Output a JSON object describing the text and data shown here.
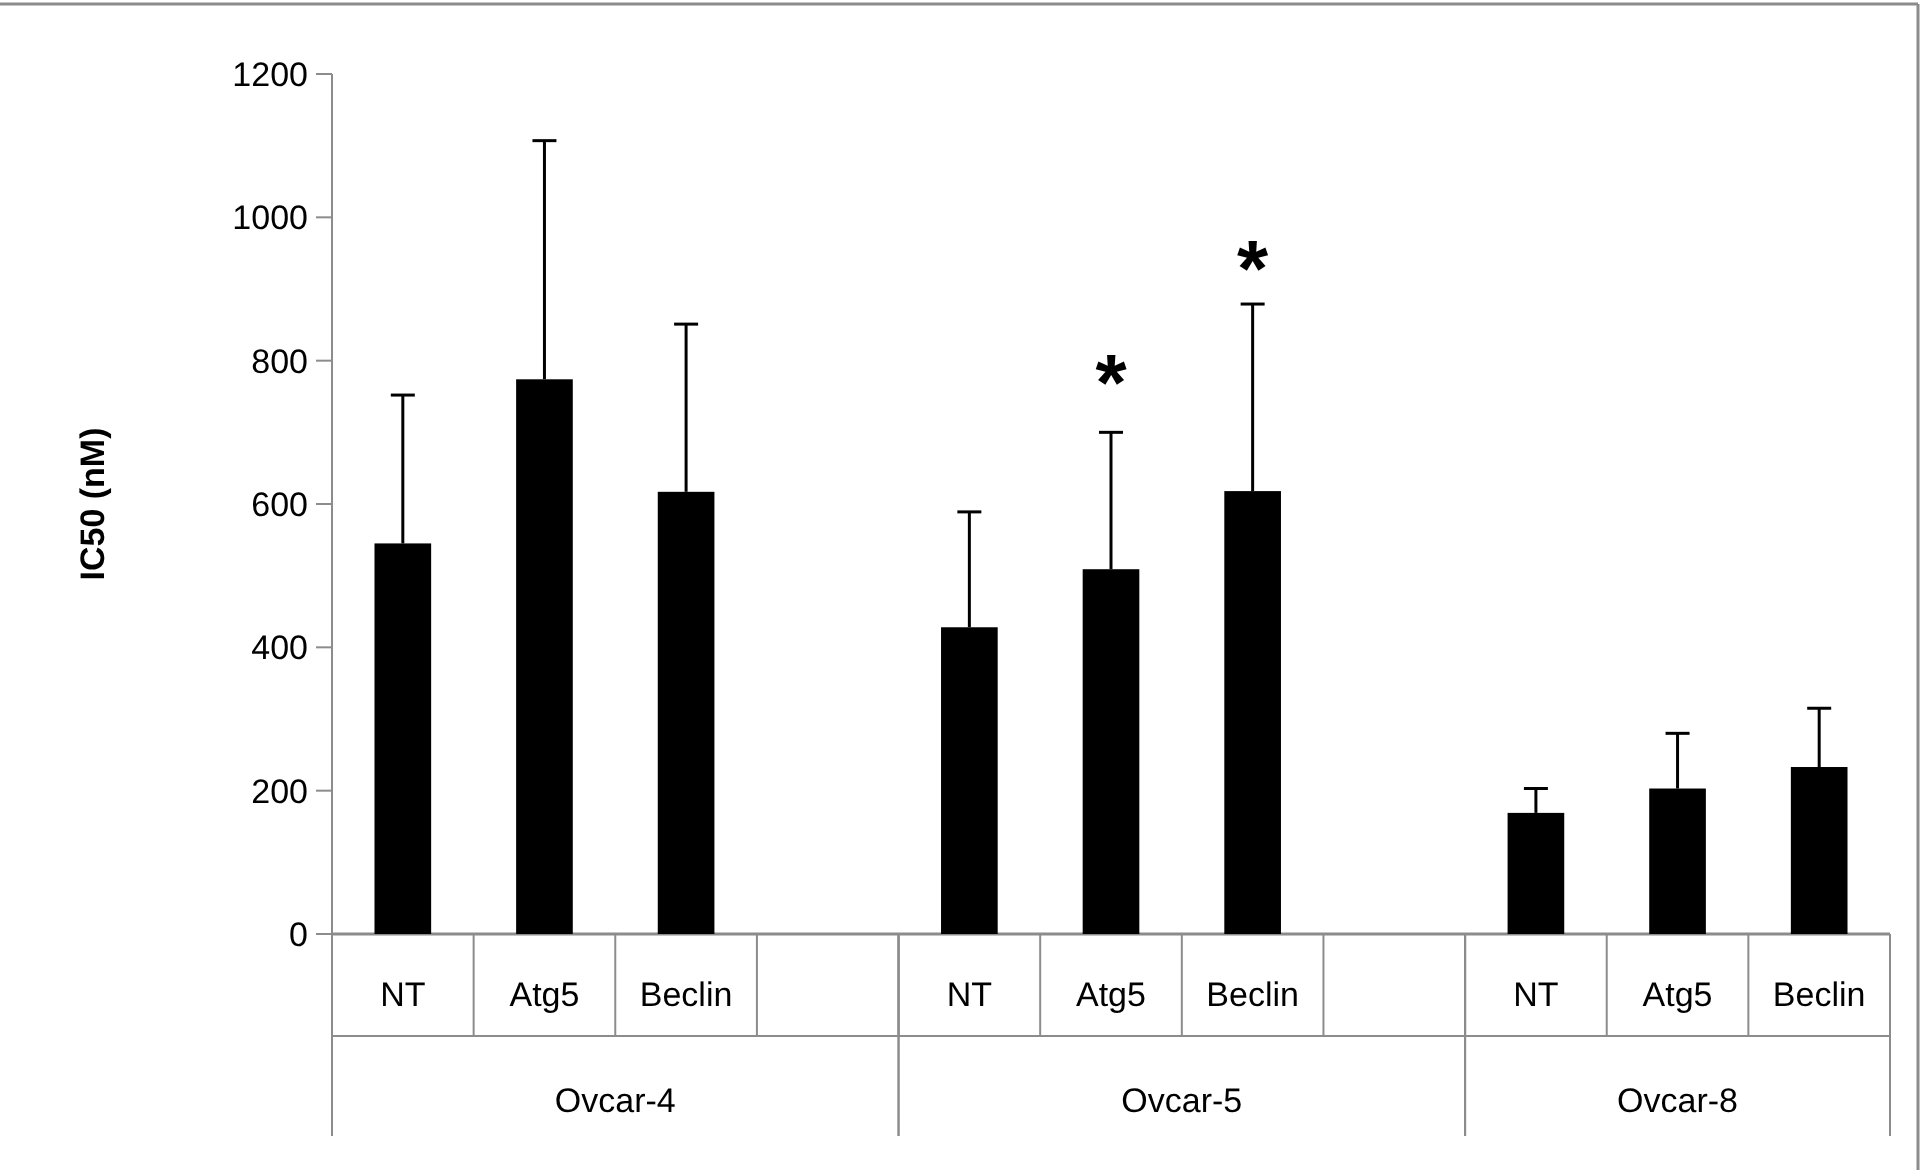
{
  "chart_data": {
    "type": "bar",
    "ylabel": "IC50 (nM)",
    "categories": [
      "NT",
      "Atg5",
      "Beclin",
      null,
      "NT",
      "Atg5",
      "Beclin",
      null,
      "NT",
      "Atg5",
      "Beclin"
    ],
    "values": [
      545,
      774,
      617,
      null,
      428,
      509,
      618,
      null,
      169,
      203,
      233
    ],
    "errors": [
      [
        545,
        752
      ],
      [
        774,
        1107
      ],
      [
        617,
        851
      ],
      null,
      [
        428,
        589
      ],
      [
        509,
        700
      ],
      [
        618,
        879
      ],
      null,
      [
        169,
        203
      ],
      [
        203,
        280
      ],
      [
        233,
        315
      ]
    ],
    "color": "#000000",
    "ylim": [
      0,
      1200
    ],
    "yticks": [
      0,
      200,
      400,
      600,
      800,
      1000,
      1200
    ],
    "grid": false,
    "annotations": [
      "Ovcar-4",
      "Ovcar-5",
      "Ovcar-8",
      "*",
      "*"
    ]
  }
}
